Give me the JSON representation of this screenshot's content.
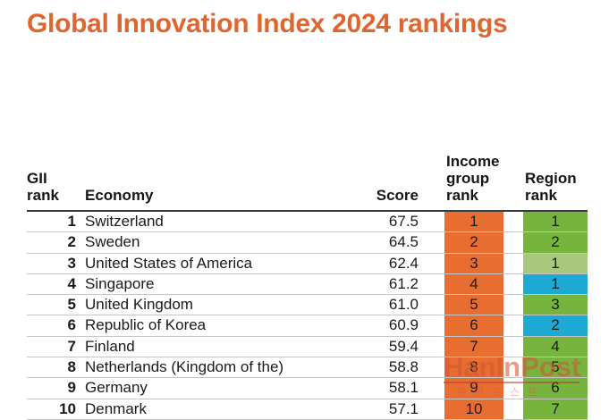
{
  "title": "Global Innovation Index 2024 rankings",
  "colors": {
    "title_orange": "#e0662f",
    "income_cell_orange": "#e86d30",
    "region_green": "#76b43e",
    "region_light_green": "#a9c87e",
    "region_blue": "#1ca9d4",
    "row_divider_gray": "#c6c6c6",
    "header_rule_dark": "#3a3a3a",
    "watermark_orange": "#d25634"
  },
  "table": {
    "headers": {
      "rank": "GII rank",
      "economy": "Economy",
      "score": "Score",
      "income": "Income group rank",
      "region": "Region rank"
    },
    "rows": [
      {
        "rank": "1",
        "economy": "Switzerland",
        "score": "67.5",
        "income": "1",
        "region": "1",
        "region_color": "green"
      },
      {
        "rank": "2",
        "economy": "Sweden",
        "score": "64.5",
        "income": "2",
        "region": "2",
        "region_color": "green"
      },
      {
        "rank": "3",
        "economy": "United States of America",
        "score": "62.4",
        "income": "3",
        "region": "1",
        "region_color": "light-green"
      },
      {
        "rank": "4",
        "economy": "Singapore",
        "score": "61.2",
        "income": "4",
        "region": "1",
        "region_color": "blue"
      },
      {
        "rank": "5",
        "economy": "United Kingdom",
        "score": "61.0",
        "income": "5",
        "region": "3",
        "region_color": "green"
      },
      {
        "rank": "6",
        "economy": "Republic of Korea",
        "score": "60.9",
        "income": "6",
        "region": "2",
        "region_color": "blue"
      },
      {
        "rank": "7",
        "economy": "Finland",
        "score": "59.4",
        "income": "7",
        "region": "4",
        "region_color": "green"
      },
      {
        "rank": "8",
        "economy": "Netherlands (Kingdom of the)",
        "score": "58.8",
        "income": "8",
        "region": "5",
        "region_color": "green"
      },
      {
        "rank": "9",
        "economy": "Germany",
        "score": "58.1",
        "income": "9",
        "region": "6",
        "region_color": "green"
      },
      {
        "rank": "10",
        "economy": "Denmark",
        "score": "57.1",
        "income": "10",
        "region": "7",
        "region_color": "green"
      }
    ]
  },
  "watermark": {
    "text": "HanInPost",
    "subtext": "한인포스트"
  },
  "chart_data": {
    "type": "table",
    "title": "Global Innovation Index 2024 rankings",
    "columns": [
      "GII rank",
      "Economy",
      "Score",
      "Income group rank",
      "Region rank"
    ],
    "rows": [
      [
        1,
        "Switzerland",
        67.5,
        1,
        1
      ],
      [
        2,
        "Sweden",
        64.5,
        2,
        2
      ],
      [
        3,
        "United States of America",
        62.4,
        3,
        1
      ],
      [
        4,
        "Singapore",
        61.2,
        4,
        1
      ],
      [
        5,
        "United Kingdom",
        61.0,
        5,
        3
      ],
      [
        6,
        "Republic of Korea",
        60.9,
        6,
        2
      ],
      [
        7,
        "Finland",
        59.4,
        7,
        4
      ],
      [
        8,
        "Netherlands (Kingdom of the)",
        58.8,
        8,
        5
      ],
      [
        9,
        "Germany",
        58.1,
        9,
        6
      ],
      [
        10,
        "Denmark",
        57.1,
        10,
        7
      ]
    ],
    "cell_color_notes": {
      "income_group_rank": "all cells orange",
      "region_rank": "green for Europe ranks; light-green for USA (row 3); blue for Singapore (row 4) and Republic of Korea (row 6)"
    }
  }
}
